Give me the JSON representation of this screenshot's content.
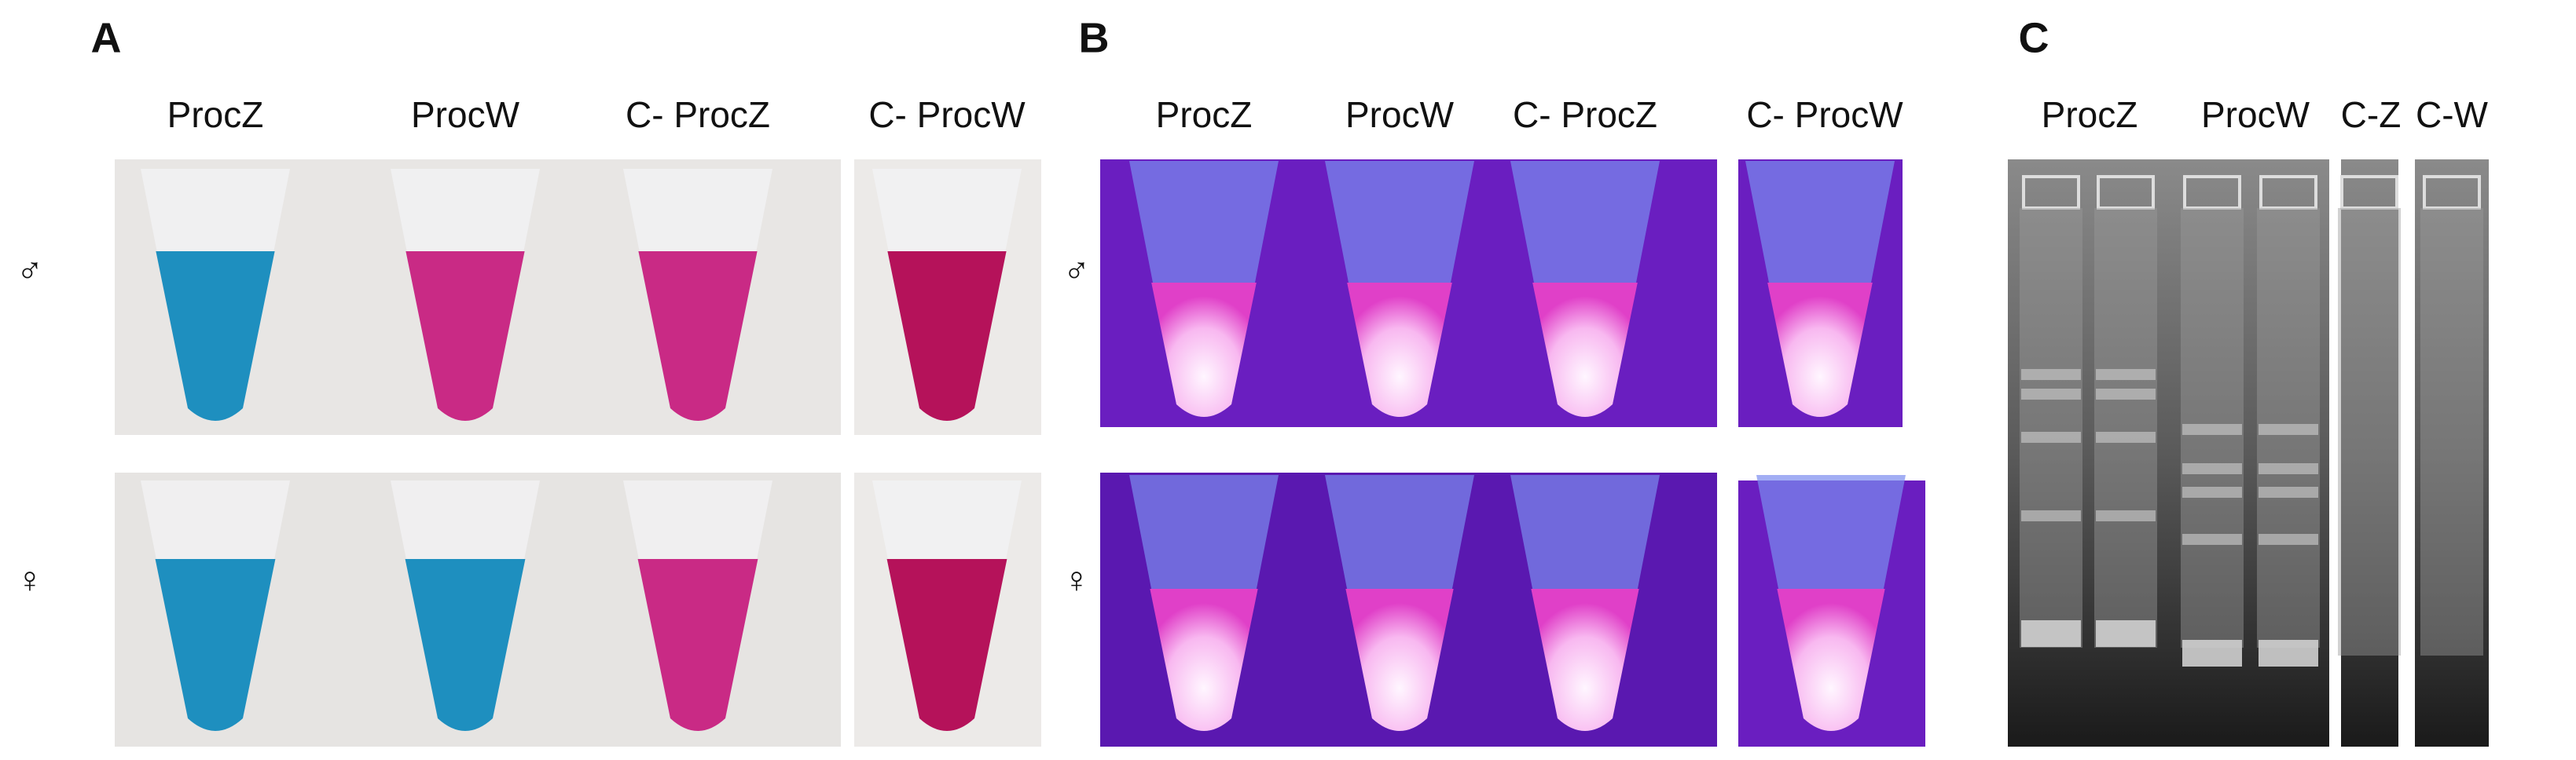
{
  "panels": [
    {
      "label": "A",
      "columns": [
        "ProcZ",
        "ProcW",
        "C- ProcZ",
        "C- ProcW"
      ],
      "rows": [
        "♂",
        "♀"
      ]
    },
    {
      "label": "B",
      "columns": [
        "ProcZ",
        "ProcW",
        "C- ProcZ",
        "C- ProcW"
      ],
      "rows": [
        "♂",
        "♀"
      ]
    },
    {
      "label": "C",
      "columns": [
        "ProcZ",
        "ProcW",
        "C-Z",
        "C-W"
      ]
    }
  ]
}
